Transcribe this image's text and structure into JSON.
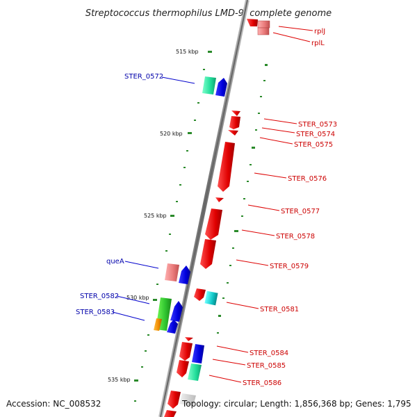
{
  "title": "Streptococcus thermophilus LMD-9, complete genome",
  "footer": {
    "accession": "Accession: NC_008532",
    "topology": "Topology: circular; Length: 1,856,368 bp; Genes: 1,795"
  },
  "ticks": [
    "515 kbp",
    "520 kbp",
    "525 kbp",
    "530 kbp",
    "535 kbp"
  ],
  "colors": {
    "backbone": "#8a8a8a",
    "forward_strand_gene": "#0000e6",
    "reverse_strand_gene": "#e60000",
    "rna_gene": "#f08080",
    "tick_mark": "#2a8a2a",
    "label_reverse": "#cc0000",
    "label_forward": "#0000aa"
  },
  "genes_reverse_strand": [
    {
      "label": "rplJ"
    },
    {
      "label": "rplL"
    },
    {
      "label": "STER_0573"
    },
    {
      "label": "STER_0574"
    },
    {
      "label": "STER_0575"
    },
    {
      "label": "STER_0576"
    },
    {
      "label": "STER_0577"
    },
    {
      "label": "STER_0578"
    },
    {
      "label": "STER_0579"
    },
    {
      "label": "STER_0581"
    },
    {
      "label": "STER_0584"
    },
    {
      "label": "STER_0585"
    },
    {
      "label": "STER_0586"
    }
  ],
  "genes_forward_strand": [
    {
      "label": "STER_0572"
    },
    {
      "label": "queA"
    },
    {
      "label": "STER_0582"
    },
    {
      "label": "STER_0583"
    }
  ]
}
